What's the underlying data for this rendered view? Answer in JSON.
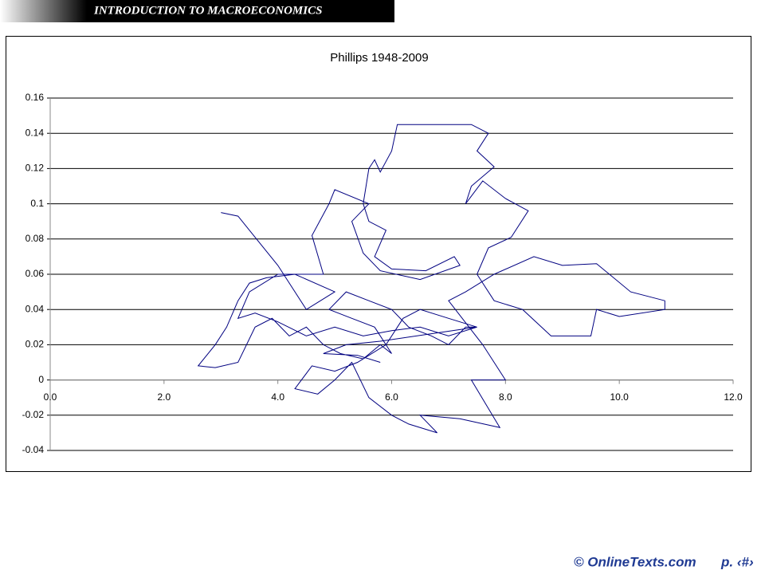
{
  "header": {
    "title": "INTRODUCTION TO MACROECONOMICS"
  },
  "footer": {
    "source": "© OnlineTexts.com",
    "page": "p. ‹#›"
  },
  "chart_data": {
    "type": "line",
    "title": "Phillips 1948-2009",
    "color": "#000080",
    "grid": true,
    "xlim": [
      0,
      12
    ],
    "xticks": [
      {
        "value": 0,
        "label": "0.0"
      },
      {
        "value": 2,
        "label": "2.0"
      },
      {
        "value": 4,
        "label": "4.0"
      },
      {
        "value": 6,
        "label": "6.0"
      },
      {
        "value": 8,
        "label": "8.0"
      },
      {
        "value": 10,
        "label": "10.0"
      },
      {
        "value": 12,
        "label": "12.0"
      }
    ],
    "ylim": [
      -0.04,
      0.16
    ],
    "yticks": [
      -0.04,
      -0.02,
      0,
      0.02,
      0.04,
      0.06,
      0.08,
      0.1,
      0.12,
      0.14,
      0.16
    ],
    "x": [
      3.0,
      3.3,
      3.5,
      4.0,
      4.5,
      5.0,
      4.3,
      3.8,
      3.5,
      3.3,
      3.1,
      2.9,
      2.6,
      2.9,
      3.3,
      3.6,
      3.9,
      4.2,
      4.5,
      4.8,
      5.1,
      5.5,
      5.8,
      6.0,
      5.7,
      5.3,
      4.9,
      5.2,
      5.6,
      6.0,
      6.3,
      6.7,
      7.0,
      7.3,
      7.5,
      7.0,
      6.5,
      6.2,
      5.9,
      5.4,
      5.0,
      4.6,
      4.3,
      4.7,
      5.0,
      5.3,
      5.6,
      6.0,
      6.3,
      6.8,
      6.5,
      7.2,
      7.9,
      7.4,
      8.0,
      7.6,
      7.0,
      7.3,
      7.8,
      8.5,
      9.0,
      9.6,
      10.2,
      10.8,
      10.8,
      10.0,
      9.6,
      9.5,
      8.8,
      8.3,
      7.8,
      7.5,
      7.7,
      8.1,
      8.4,
      8.0,
      7.6,
      7.3,
      7.4,
      7.8,
      7.5,
      7.7,
      7.4,
      6.1,
      6.0,
      5.8,
      5.7,
      5.6,
      5.5,
      5.6,
      5.9,
      5.7,
      6.0,
      6.6,
      7.1,
      7.2,
      6.5,
      5.8,
      5.5,
      5.3,
      5.6,
      5.0,
      4.9,
      4.6,
      4.8,
      4.0,
      3.5,
      3.3,
      3.6,
      4.0,
      4.5,
      5.0,
      5.5,
      6.0,
      6.5,
      7.0,
      7.5,
      5.8,
      5.2,
      4.8,
      5.4,
      5.8
    ],
    "values": [
      0.095,
      0.093,
      0.085,
      0.065,
      0.04,
      0.05,
      0.06,
      0.058,
      0.055,
      0.045,
      0.03,
      0.02,
      0.008,
      0.007,
      0.01,
      0.03,
      0.035,
      0.025,
      0.03,
      0.02,
      0.015,
      0.012,
      0.02,
      0.015,
      0.03,
      0.035,
      0.04,
      0.05,
      0.045,
      0.04,
      0.03,
      0.025,
      0.02,
      0.03,
      0.03,
      0.035,
      0.04,
      0.035,
      0.02,
      0.01,
      0.005,
      0.008,
      -0.005,
      -0.008,
      0.0,
      0.01,
      -0.01,
      -0.02,
      -0.025,
      -0.03,
      -0.02,
      -0.022,
      -0.027,
      0.0,
      0.0,
      0.02,
      0.045,
      0.05,
      0.06,
      0.07,
      0.065,
      0.066,
      0.05,
      0.045,
      0.04,
      0.036,
      0.04,
      0.025,
      0.025,
      0.04,
      0.045,
      0.06,
      0.075,
      0.081,
      0.096,
      0.103,
      0.113,
      0.1,
      0.11,
      0.121,
      0.13,
      0.14,
      0.145,
      0.145,
      0.13,
      0.118,
      0.125,
      0.12,
      0.1,
      0.09,
      0.085,
      0.07,
      0.063,
      0.062,
      0.07,
      0.065,
      0.057,
      0.062,
      0.072,
      0.09,
      0.1,
      0.108,
      0.1,
      0.082,
      0.06,
      0.06,
      0.05,
      0.035,
      0.038,
      0.033,
      0.025,
      0.03,
      0.025,
      0.028,
      0.03,
      0.025,
      0.03,
      0.022,
      0.02,
      0.015,
      0.014,
      0.01
    ]
  }
}
